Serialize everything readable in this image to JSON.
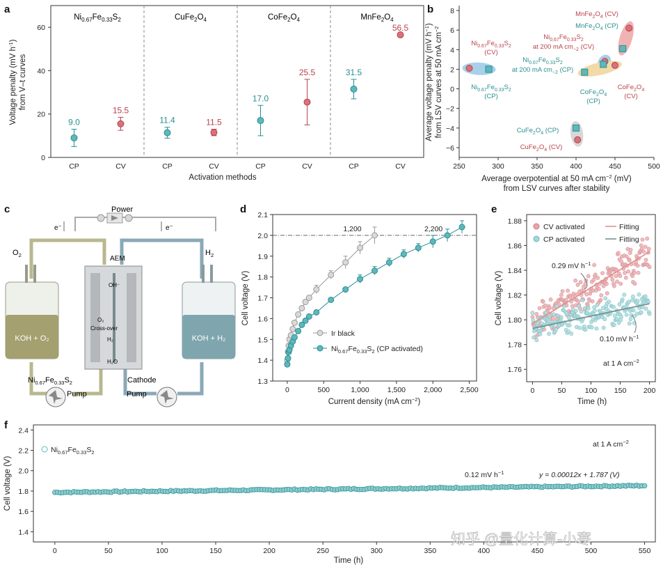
{
  "colors": {
    "teal": "#5fb7bc",
    "teal_dark": "#2a8e90",
    "red": "#d9727a",
    "red_dark": "#b8424b",
    "grey_point": "#d9d9d9",
    "grey_line": "#9a9a9a",
    "axis": "#333333",
    "fit_red": "#e0938d",
    "fit_grey": "#7a9191"
  },
  "panels": {
    "a": {
      "label": "a",
      "groups": [
        "Ni0.67Fe0.33S2",
        "CuFe2O4",
        "CoFe2O4",
        "MnFe2O4"
      ],
      "group_labels": [
        {
          "base": "Ni",
          "sub1": "0.67",
          "mid": "Fe",
          "sub2": "0.33",
          "end": "S",
          "sub3": "2"
        },
        {
          "base": "CuFe",
          "sub1": "2",
          "mid": "O",
          "sub2": "4"
        },
        {
          "base": "CoFe",
          "sub1": "2",
          "mid": "O",
          "sub2": "4"
        },
        {
          "base": "MnFe",
          "sub1": "2",
          "mid": "O",
          "sub2": "4"
        }
      ],
      "xlabel": "Activation methods",
      "ylabel_line1": "Voltage penalty (mV h",
      "ylabel_sup": "-1",
      "ylabel_line1_end": ")",
      "ylabel_line2": "from V–t curves",
      "yticks": [
        "0",
        "20",
        "40",
        "60"
      ]
    },
    "b": {
      "label": "b",
      "xlabel_line1": "Average overpotential at 50 mA cm",
      "xlabel_sup": "−2",
      "xlabel_line1_end": " (mV)",
      "xlabel_line2": "from LSV curves after stability",
      "ylabel_line1": "Average voltage penalty (mV h",
      "ylabel_sup": "−1",
      "ylabel_line1_end": ")",
      "ylabel_line2": "from LSV curves at 50 mA cm",
      "ylabel_sup2": "−2",
      "xticks": [
        "250",
        "300",
        "350",
        "400",
        "450",
        "500"
      ],
      "yticks": [
        "−6",
        "−4",
        "−2",
        "0",
        "2",
        "4",
        "6",
        "8"
      ],
      "labels": {
        "mn_cv": "MnFe2O4 (CV)",
        "mn_cp": "MnFe2O4 (CP)",
        "ni_cv": "Ni0.67Fe0.33S2 (CV)",
        "ni_cp": "Ni0.67Fe0.33S2 (CP)",
        "ni200_cv": "Ni0.67Fe0.33S2 at 200 mA cm−2 (CV)",
        "ni200_cp": "Ni0.67Fe0.33S2 at 200 mA cm−2 (CP)",
        "co_cp": "CoFe2O4 (CP)",
        "co_cv": "CoFe2O4 (CV)",
        "cu_cp": "CuFe2O4 (CP)",
        "cu_cv": "CuFe2O4 (CV)"
      }
    },
    "c": {
      "label": "c",
      "power": "Power",
      "e_left": "e⁻",
      "e_right": "e⁻",
      "o2": "O",
      "o2_sub": "2",
      "h2": "H",
      "h2_sub": "2",
      "aem": "AEM",
      "oh": "OH⁻",
      "o2_inner": "O₂",
      "crossover": "Cross-over",
      "h2_inner": "H₂",
      "h2o": "H₂O",
      "koh_o2": "KOH + O₂",
      "koh_h2": "KOH + H₂",
      "anode_material": "Ni0.67Fe0.33S2",
      "cathode": "Cathode",
      "pump_left": "Pump",
      "pump_right": "Pump"
    },
    "d": {
      "label": "d",
      "xlabel": "Current density (mA cm",
      "xlabel_sup": "−2",
      "xlabel_end": ")",
      "ylabel": "Cell voltage (V)",
      "xticks": [
        "0",
        "500",
        "1,000",
        "1,500",
        "2,000",
        "2,500"
      ],
      "yticks": [
        "1.3",
        "1.4",
        "1.5",
        "1.6",
        "1.7",
        "1.8",
        "1.9",
        "2.0",
        "2.1"
      ],
      "annot_1200": "1,200",
      "annot_2200": "2,200",
      "legend_ir": "Ir black",
      "legend_ni": "Ni0.67Fe0.33S2 (CP activated)"
    },
    "e": {
      "label": "e",
      "xlabel": "Time (h)",
      "ylabel": "Cell voltage (V)",
      "xticks": [
        "0",
        "50",
        "100",
        "150",
        "200"
      ],
      "yticks": [
        "1.76",
        "1.78",
        "1.80",
        "1.82",
        "1.84",
        "1.86",
        "1.88"
      ],
      "legend_cv": "CV activated",
      "legend_cp": "CP activated",
      "legend_fit1": "Fitting",
      "legend_fit2": "Fitting",
      "rate_cv": "0.29 mV h",
      "rate_cp": "0.10 mV h",
      "sup": "−1",
      "condition": "at 1 A cm",
      "condition_sup": "−2"
    },
    "f": {
      "label": "f",
      "xlabel": "Time (h)",
      "ylabel": "Cell voltage (V)",
      "xticks": [
        "0",
        "50",
        "100",
        "150",
        "200",
        "250",
        "300",
        "350",
        "400",
        "450",
        "500",
        "550"
      ],
      "yticks": [
        "1.4",
        "1.6",
        "1.8",
        "2.0",
        "2.2",
        "2.4"
      ],
      "legend": "Ni0.67Fe0.33S2",
      "condition": "at 1 A cm",
      "condition_sup": "−2",
      "rate": "0.12 mV h",
      "rate_sup": "−1",
      "equation": "y = 0.00012x + 1.787 (V)"
    }
  },
  "watermark": "知乎 @量化计算-小寒",
  "chart_data": [
    {
      "id": "a",
      "type": "scatter",
      "title": "",
      "xlabel": "Activation methods",
      "ylabel": "Voltage penalty (mV h-1) from V-t curves",
      "ylim": [
        0,
        70
      ],
      "categories": [
        "CP",
        "CV",
        "CP",
        "CV",
        "CP",
        "CV",
        "CP",
        "CV"
      ],
      "series": [
        {
          "name": "CP",
          "color": "teal",
          "points": [
            {
              "group": 0,
              "value": 9.0,
              "label": "9.0",
              "err": 4
            },
            {
              "group": 1,
              "value": 11.4,
              "label": "11.4",
              "err": 2.5
            },
            {
              "group": 2,
              "value": 17.0,
              "label": "17.0",
              "err": 7
            },
            {
              "group": 3,
              "value": 31.5,
              "label": "31.5",
              "err": 4.5
            }
          ]
        },
        {
          "name": "CV",
          "color": "red",
          "points": [
            {
              "group": 0,
              "value": 15.5,
              "label": "15.5",
              "err": 3
            },
            {
              "group": 1,
              "value": 11.5,
              "label": "11.5",
              "err": 1.5
            },
            {
              "group": 2,
              "value": 25.5,
              "label": "25.5",
              "err": 10.5
            },
            {
              "group": 3,
              "value": 56.5,
              "label": "56.5",
              "err": 0
            }
          ]
        }
      ]
    },
    {
      "id": "b",
      "type": "scatter",
      "xlabel": "Average overpotential at 50 mA cm-2 (mV) from LSV curves after stability",
      "ylabel": "Average voltage penalty (mV h-1) from LSV curves at 50 mA cm-2",
      "xlim": [
        250,
        500
      ],
      "ylim": [
        -7,
        8.5
      ],
      "series": [
        {
          "name": "CV activated",
          "marker": "circle",
          "color": "red",
          "points": [
            {
              "x": 263,
              "y": 2.1,
              "label": "Ni0.67Fe0.33S2 (CV)"
            },
            {
              "x": 437,
              "y": 2.8,
              "label": "Ni0.67Fe0.33S2 at 200 mA cm-2 (CV)"
            },
            {
              "x": 450,
              "y": 2.4,
              "label": "CoFe2O4 (CV)"
            },
            {
              "x": 468,
              "y": 6.2,
              "label": "MnFe2O4 (CV)"
            },
            {
              "x": 402,
              "y": -5.2,
              "label": "CuFe2O4 (CV)"
            }
          ]
        },
        {
          "name": "CP activated",
          "marker": "square",
          "color": "teal",
          "points": [
            {
              "x": 288,
              "y": 2.0,
              "label": "Ni0.67Fe0.33S2 (CP)"
            },
            {
              "x": 435,
              "y": 2.5,
              "label": "Ni0.67Fe0.33S2 at 200 mA cm-2 (CP)"
            },
            {
              "x": 411,
              "y": 1.7,
              "label": "CoFe2O4 (CP)"
            },
            {
              "x": 460,
              "y": 4.1,
              "label": "MnFe2O4 (CP)"
            },
            {
              "x": 400,
              "y": -4.0,
              "label": "CuFe2O4 (CP)"
            }
          ]
        }
      ]
    },
    {
      "id": "d",
      "type": "line",
      "xlabel": "Current density (mA cm-2)",
      "ylabel": "Cell voltage (V)",
      "xlim": [
        -200,
        2600
      ],
      "ylim": [
        1.3,
        2.1
      ],
      "reference_line": 2.0,
      "series": [
        {
          "name": "Ir black",
          "color": "grey",
          "x": [
            0,
            10,
            20,
            30,
            50,
            75,
            100,
            150,
            200,
            250,
            300,
            400,
            600,
            800,
            1000,
            1200
          ],
          "y": [
            1.4,
            1.44,
            1.47,
            1.5,
            1.52,
            1.55,
            1.58,
            1.62,
            1.65,
            1.68,
            1.7,
            1.74,
            1.81,
            1.87,
            1.94,
            2.0
          ],
          "err": [
            0.01,
            0.01,
            0.01,
            0.01,
            0.01,
            0.01,
            0.01,
            0.01,
            0.01,
            0.01,
            0.01,
            0.02,
            0.02,
            0.03,
            0.03,
            0.04
          ]
        },
        {
          "name": "Ni0.67Fe0.33S2 (CP activated)",
          "color": "teal",
          "x": [
            0,
            10,
            20,
            30,
            50,
            75,
            100,
            150,
            200,
            250,
            300,
            400,
            600,
            800,
            1000,
            1200,
            1400,
            1600,
            1800,
            2000,
            2200,
            2400
          ],
          "y": [
            1.38,
            1.41,
            1.44,
            1.45,
            1.47,
            1.49,
            1.51,
            1.54,
            1.57,
            1.59,
            1.61,
            1.63,
            1.69,
            1.74,
            1.79,
            1.83,
            1.87,
            1.91,
            1.94,
            1.97,
            2.0,
            2.04
          ],
          "err": [
            0.01,
            0.01,
            0.01,
            0.01,
            0.01,
            0.01,
            0.01,
            0.01,
            0.01,
            0.01,
            0.01,
            0.01,
            0.01,
            0.01,
            0.02,
            0.02,
            0.02,
            0.02,
            0.02,
            0.03,
            0.03,
            0.03
          ]
        }
      ],
      "annotations": [
        {
          "x": 1200,
          "y": 2.0,
          "text": "1,200"
        },
        {
          "x": 2200,
          "y": 2.0,
          "text": "2,200"
        }
      ]
    },
    {
      "id": "e",
      "type": "scatter",
      "xlabel": "Time (h)",
      "ylabel": "Cell voltage (V)",
      "xlim": [
        -10,
        210
      ],
      "ylim": [
        1.75,
        1.885
      ],
      "series": [
        {
          "name": "CV activated",
          "color": "red",
          "fit": {
            "slope": 0.00029,
            "intercept": 1.797
          },
          "noise": 0.014,
          "t_start": 0,
          "t_end": 200,
          "n": 200
        },
        {
          "name": "CP activated",
          "color": "teal",
          "fit": {
            "slope": 0.0001,
            "intercept": 1.793
          },
          "noise": 0.012,
          "t_start": 0,
          "t_end": 200,
          "n": 200
        }
      ],
      "fits": [
        {
          "name": "Fitting (CV)",
          "slope_mV_per_h": 0.29,
          "x": [
            0,
            200
          ],
          "y": [
            1.797,
            1.855
          ]
        },
        {
          "name": "Fitting (CP)",
          "slope_mV_per_h": 0.1,
          "x": [
            0,
            200
          ],
          "y": [
            1.793,
            1.813
          ]
        }
      ]
    },
    {
      "id": "f",
      "type": "scatter",
      "xlabel": "Time (h)",
      "ylabel": "Cell voltage (V)",
      "xlim": [
        -20,
        560
      ],
      "ylim": [
        1.3,
        2.45
      ],
      "series": [
        {
          "name": "Ni0.67Fe0.33S2",
          "color": "teal",
          "fit": {
            "slope": 0.00012,
            "intercept": 1.787
          },
          "t_start": 0,
          "t_end": 550,
          "n": 220,
          "noise": 0.006
        }
      ],
      "equation": "y = 0.00012x + 1.787 (V)"
    }
  ]
}
